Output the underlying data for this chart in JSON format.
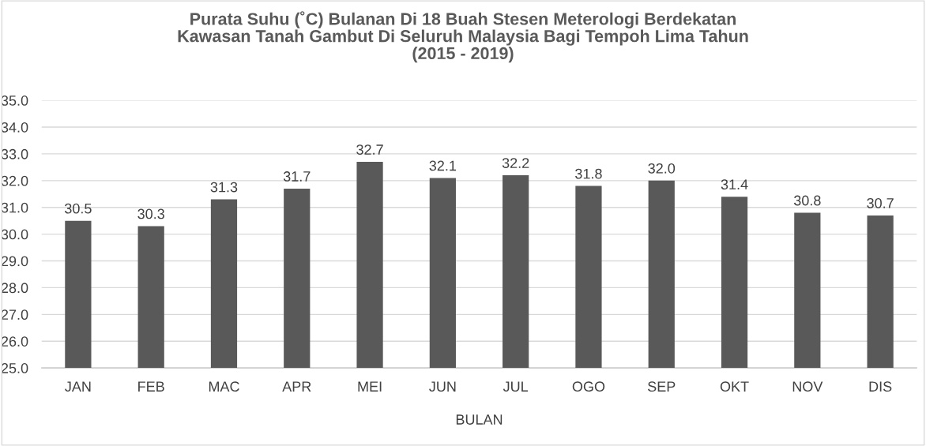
{
  "chart_data": {
    "type": "bar",
    "title": "Purata Suhu (˚C) Bulanan Di 18 Buah Stesen Meterologi Berdekatan\nKawasan Tanah Gambut Di Seluruh Malaysia Bagi Tempoh Lima Tahun\n(2015 - 2019)",
    "xlabel": "BULAN",
    "categories": [
      "JAN",
      "FEB",
      "MAC",
      "APR",
      "MEI",
      "JUN",
      "JUL",
      "OGO",
      "SEP",
      "OKT",
      "NOV",
      "DIS"
    ],
    "values": [
      30.5,
      30.3,
      31.3,
      31.7,
      32.7,
      32.1,
      32.2,
      31.8,
      32.0,
      31.4,
      30.8,
      30.7
    ],
    "value_labels": [
      "30.5",
      "30.3",
      "31.3",
      "31.7",
      "32.7",
      "32.1",
      "32.2",
      "31.8",
      "32.0",
      "31.4",
      "30.8",
      "30.7"
    ],
    "color": "#595959",
    "ylim": [
      25,
      35
    ],
    "yticks": [
      {
        "value": 25,
        "label": "25.0"
      },
      {
        "value": 26,
        "label": "26.0"
      },
      {
        "value": 27,
        "label": "27.0"
      },
      {
        "value": 28,
        "label": "28.0"
      },
      {
        "value": 29,
        "label": "29.0"
      },
      {
        "value": 30,
        "label": "30.0"
      },
      {
        "value": 31,
        "label": "31.0"
      },
      {
        "value": 32,
        "label": "32.0"
      },
      {
        "value": 33,
        "label": "33.0"
      },
      {
        "value": 34,
        "label": "34.0"
      },
      {
        "value": 35,
        "label": "35.0"
      }
    ],
    "grid": "y"
  }
}
